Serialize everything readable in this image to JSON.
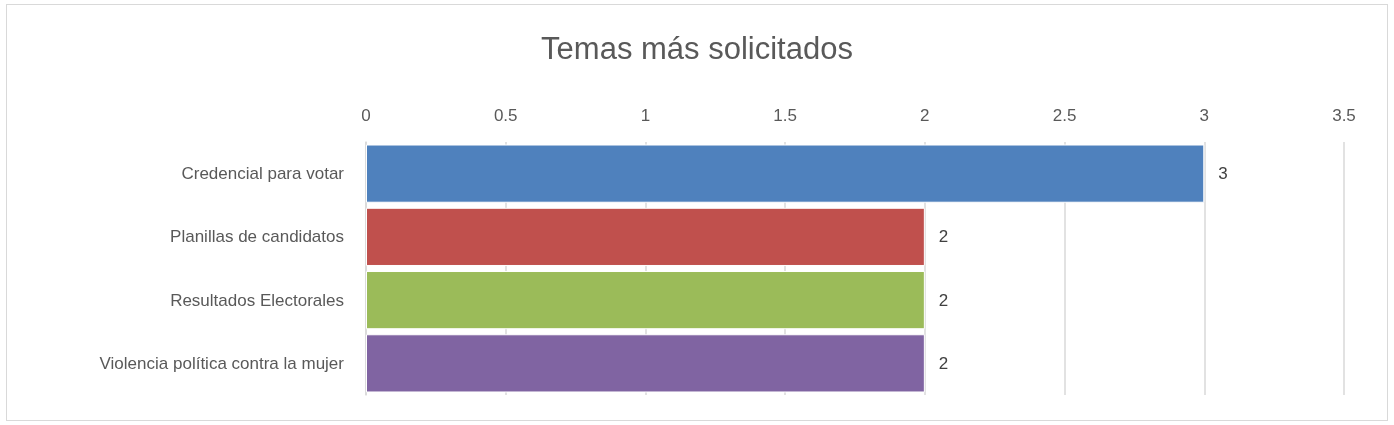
{
  "chart_data": {
    "type": "bar",
    "orientation": "horizontal",
    "title": "Temas más solicitados",
    "categories": [
      "Credencial para votar",
      "Planillas de candidatos",
      "Resultados Electorales",
      "Violencia política contra la mujer"
    ],
    "values": [
      3,
      2,
      2,
      2
    ],
    "colors": [
      "#4f81bd",
      "#c0504d",
      "#9bbb59",
      "#8064a2"
    ],
    "xlim": [
      0,
      3.5
    ],
    "xticks": [
      0,
      0.5,
      1,
      1.5,
      2,
      2.5,
      3,
      3.5
    ],
    "grid": "x",
    "data_labels": true
  }
}
